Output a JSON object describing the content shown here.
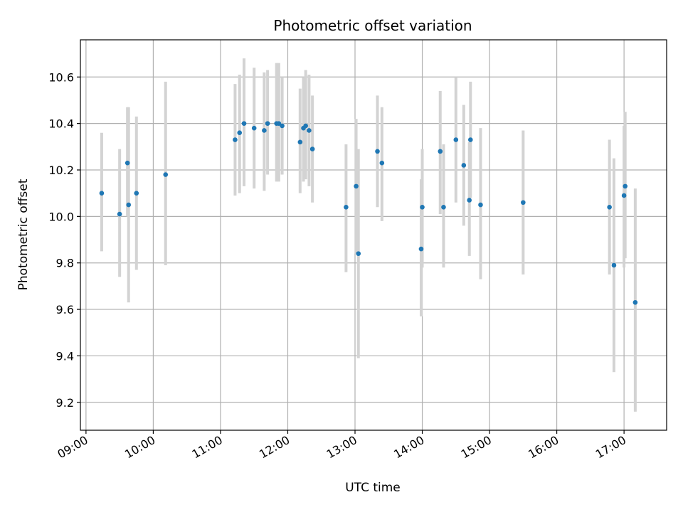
{
  "chart_data": {
    "type": "scatter",
    "title": "Photometric offset variation",
    "xlabel": "UTC time",
    "ylabel": "Photometric offset",
    "x_ticks": [
      "09:00",
      "10:00",
      "11:00",
      "12:00",
      "13:00",
      "14:00",
      "15:00",
      "16:00",
      "17:00"
    ],
    "y_ticks": [
      "9.2",
      "9.4",
      "9.6",
      "9.8",
      "10.0",
      "10.2",
      "10.4",
      "10.6"
    ],
    "xlim": [
      "08:55",
      "17:38"
    ],
    "ylim": [
      9.08,
      10.76
    ],
    "grid": true,
    "marker_color": "#1f77b4",
    "errorbar_color": "#d3d3d3",
    "points": [
      {
        "x": "09:14",
        "y": 10.1,
        "err_low": 9.85,
        "err_high": 10.36
      },
      {
        "x": "09:30",
        "y": 10.01,
        "err_low": 9.74,
        "err_high": 10.29
      },
      {
        "x": "09:37",
        "y": 10.23,
        "err_low": 10.0,
        "err_high": 10.47
      },
      {
        "x": "09:38",
        "y": 10.05,
        "err_low": 9.63,
        "err_high": 10.47
      },
      {
        "x": "09:45",
        "y": 10.1,
        "err_low": 9.77,
        "err_high": 10.43
      },
      {
        "x": "10:11",
        "y": 10.18,
        "err_low": 9.79,
        "err_high": 10.58
      },
      {
        "x": "11:13",
        "y": 10.33,
        "err_low": 10.09,
        "err_high": 10.57
      },
      {
        "x": "11:17",
        "y": 10.36,
        "err_low": 10.1,
        "err_high": 10.61
      },
      {
        "x": "11:21",
        "y": 10.4,
        "err_low": 10.13,
        "err_high": 10.68
      },
      {
        "x": "11:30",
        "y": 10.38,
        "err_low": 10.12,
        "err_high": 10.64
      },
      {
        "x": "11:39",
        "y": 10.37,
        "err_low": 10.11,
        "err_high": 10.62
      },
      {
        "x": "11:42",
        "y": 10.4,
        "err_low": 10.18,
        "err_high": 10.63
      },
      {
        "x": "11:50",
        "y": 10.4,
        "err_low": 10.15,
        "err_high": 10.66
      },
      {
        "x": "11:52",
        "y": 10.4,
        "err_low": 10.15,
        "err_high": 10.66
      },
      {
        "x": "11:55",
        "y": 10.39,
        "err_low": 10.18,
        "err_high": 10.6
      },
      {
        "x": "12:11",
        "y": 10.32,
        "err_low": 10.1,
        "err_high": 10.55
      },
      {
        "x": "12:14",
        "y": 10.38,
        "err_low": 10.15,
        "err_high": 10.6
      },
      {
        "x": "12:16",
        "y": 10.39,
        "err_low": 10.16,
        "err_high": 10.63
      },
      {
        "x": "12:19",
        "y": 10.37,
        "err_low": 10.13,
        "err_high": 10.61
      },
      {
        "x": "12:22",
        "y": 10.29,
        "err_low": 10.06,
        "err_high": 10.52
      },
      {
        "x": "12:52",
        "y": 10.04,
        "err_low": 9.76,
        "err_high": 10.31
      },
      {
        "x": "13:01",
        "y": 10.13,
        "err_low": 9.84,
        "err_high": 10.42
      },
      {
        "x": "13:03",
        "y": 9.84,
        "err_low": 9.39,
        "err_high": 10.29
      },
      {
        "x": "13:20",
        "y": 10.28,
        "err_low": 10.04,
        "err_high": 10.52
      },
      {
        "x": "13:24",
        "y": 10.23,
        "err_low": 9.98,
        "err_high": 10.47
      },
      {
        "x": "13:59",
        "y": 9.86,
        "err_low": 9.57,
        "err_high": 10.16
      },
      {
        "x": "14:00",
        "y": 10.04,
        "err_low": 9.78,
        "err_high": 10.29
      },
      {
        "x": "14:16",
        "y": 10.28,
        "err_low": 10.01,
        "err_high": 10.54
      },
      {
        "x": "14:19",
        "y": 10.04,
        "err_low": 9.78,
        "err_high": 10.31
      },
      {
        "x": "14:30",
        "y": 10.33,
        "err_low": 10.06,
        "err_high": 10.6
      },
      {
        "x": "14:37",
        "y": 10.22,
        "err_low": 9.96,
        "err_high": 10.48
      },
      {
        "x": "14:42",
        "y": 10.07,
        "err_low": 9.83,
        "err_high": 10.32
      },
      {
        "x": "14:43",
        "y": 10.33,
        "err_low": 10.08,
        "err_high": 10.58
      },
      {
        "x": "14:52",
        "y": 10.05,
        "err_low": 9.73,
        "err_high": 10.38
      },
      {
        "x": "15:30",
        "y": 10.06,
        "err_low": 9.75,
        "err_high": 10.37
      },
      {
        "x": "16:47",
        "y": 10.04,
        "err_low": 9.75,
        "err_high": 10.33
      },
      {
        "x": "16:51",
        "y": 9.79,
        "err_low": 9.33,
        "err_high": 10.25
      },
      {
        "x": "17:00",
        "y": 10.09,
        "err_low": 9.78,
        "err_high": 10.39
      },
      {
        "x": "17:01",
        "y": 10.13,
        "err_low": 9.82,
        "err_high": 10.45
      },
      {
        "x": "17:10",
        "y": 9.63,
        "err_low": 9.16,
        "err_high": 10.12
      }
    ]
  }
}
